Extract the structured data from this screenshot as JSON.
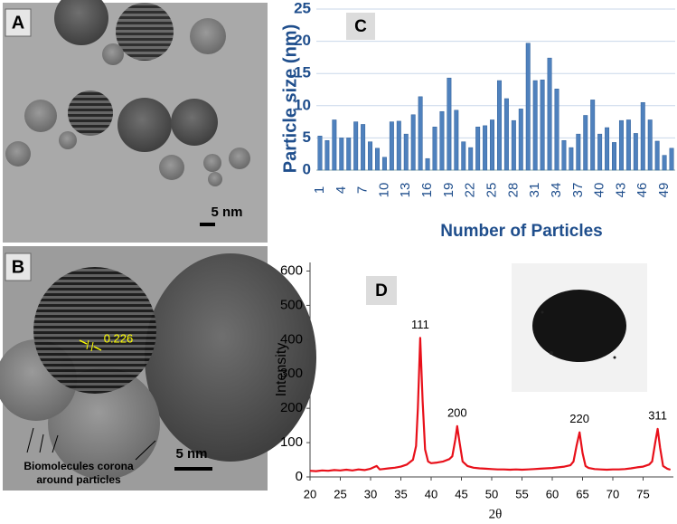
{
  "panels": {
    "A": {
      "label": "A",
      "scale": "5 nm"
    },
    "B": {
      "label": "B",
      "scale": "5 nm",
      "lattice": "0.226",
      "annotation": [
        "Biomolecules corona",
        "around particles"
      ]
    }
  },
  "chart_data": [
    {
      "type": "bar",
      "label": "C",
      "y_label": "Particle size (nm)",
      "x_label": "Number of Particles",
      "color": "#4f81bd",
      "grid": true,
      "categories": [
        "1",
        null,
        null,
        "4",
        null,
        null,
        "7",
        null,
        null,
        "10",
        null,
        null,
        "13",
        null,
        null,
        "16",
        null,
        null,
        "19",
        null,
        null,
        "22",
        null,
        null,
        "25",
        null,
        null,
        "28",
        null,
        null,
        "31",
        null,
        null,
        "34",
        null,
        null,
        "37",
        null,
        null,
        "40",
        null,
        null,
        "43",
        null,
        null,
        "46",
        null,
        null,
        "49",
        null
      ],
      "values": [
        5.3,
        4.6,
        7.8,
        5.0,
        5.0,
        7.5,
        7.1,
        4.4,
        3.4,
        2.0,
        7.5,
        7.6,
        5.6,
        8.6,
        11.4,
        1.8,
        6.7,
        9.1,
        14.3,
        9.3,
        4.4,
        3.5,
        6.7,
        6.9,
        7.8,
        13.9,
        11.1,
        7.7,
        9.5,
        19.7,
        13.9,
        14.0,
        17.4,
        12.6,
        4.6,
        3.5,
        5.6,
        8.5,
        10.9,
        5.6,
        6.6,
        4.3,
        7.7,
        7.8,
        5.7,
        10.5,
        7.8,
        4.5,
        2.3,
        3.4
      ],
      "ylim": [
        0,
        25
      ],
      "yticks": [
        0,
        5,
        10,
        15,
        20,
        25
      ]
    },
    {
      "type": "line",
      "label": "D",
      "y_label": "Intensity",
      "x_label": "2θ",
      "color": "#e8101a",
      "x": [
        20,
        21,
        22,
        23,
        24,
        25,
        26,
        27,
        28,
        29,
        30,
        31,
        31.5,
        32,
        33,
        34,
        35,
        36,
        37,
        37.5,
        37.8,
        38.2,
        38.6,
        39,
        39.5,
        40,
        41,
        42,
        43,
        43.5,
        44,
        44.3,
        44.7,
        45.2,
        46,
        47,
        48,
        49,
        50,
        51,
        52,
        53,
        54,
        55,
        56,
        57,
        58,
        59,
        60,
        61,
        62,
        63,
        63.5,
        64,
        64.5,
        65,
        65.5,
        66,
        67,
        68,
        69,
        70,
        71,
        72,
        73,
        74,
        75,
        76,
        76.5,
        77,
        77.4,
        77.8,
        78.3,
        79,
        79.5
      ],
      "values": [
        18,
        17,
        19,
        18,
        20,
        19,
        21,
        19,
        22,
        20,
        24,
        32,
        22,
        23,
        25,
        27,
        30,
        36,
        50,
        90,
        200,
        405,
        220,
        80,
        45,
        40,
        42,
        45,
        52,
        60,
        110,
        148,
        100,
        45,
        32,
        27,
        25,
        24,
        23,
        22,
        22,
        21,
        22,
        21,
        22,
        23,
        24,
        25,
        26,
        28,
        30,
        34,
        45,
        90,
        130,
        70,
        32,
        26,
        23,
        22,
        21,
        22,
        22,
        23,
        25,
        28,
        30,
        36,
        45,
        100,
        140,
        85,
        32,
        24,
        21
      ],
      "annotations": [
        {
          "text": "111",
          "x": 38.2,
          "y": 405
        },
        {
          "text": "200",
          "x": 44.3,
          "y": 148
        },
        {
          "text": "220",
          "x": 64.5,
          "y": 130
        },
        {
          "text": "311",
          "x": 77.4,
          "y": 140
        }
      ],
      "xlim": [
        20,
        80
      ],
      "xticks": [
        20,
        25,
        30,
        35,
        40,
        45,
        50,
        55,
        60,
        65,
        70,
        75
      ],
      "ylim": [
        0,
        625
      ],
      "yticks": [
        0,
        100,
        200,
        300,
        400,
        500,
        600
      ]
    }
  ]
}
